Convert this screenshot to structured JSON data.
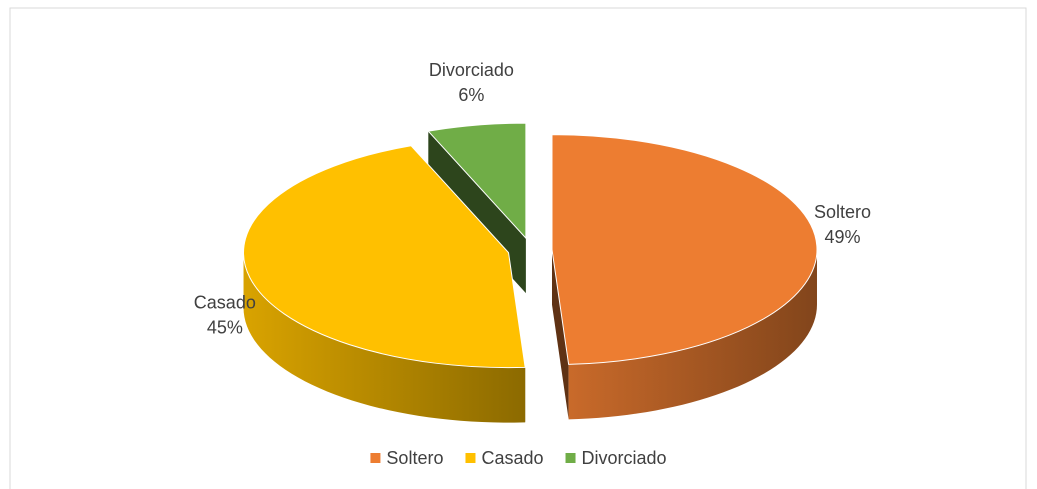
{
  "chart_data": {
    "type": "pie3d",
    "categories": [
      "Soltero",
      "Casado",
      "Divorciado"
    ],
    "values": [
      49,
      45,
      6
    ],
    "value_labels": [
      "49%",
      "45%",
      "6%"
    ],
    "colors": [
      "#ed7d31",
      "#ffc000",
      "#70ad47"
    ],
    "legend": "bottom"
  }
}
